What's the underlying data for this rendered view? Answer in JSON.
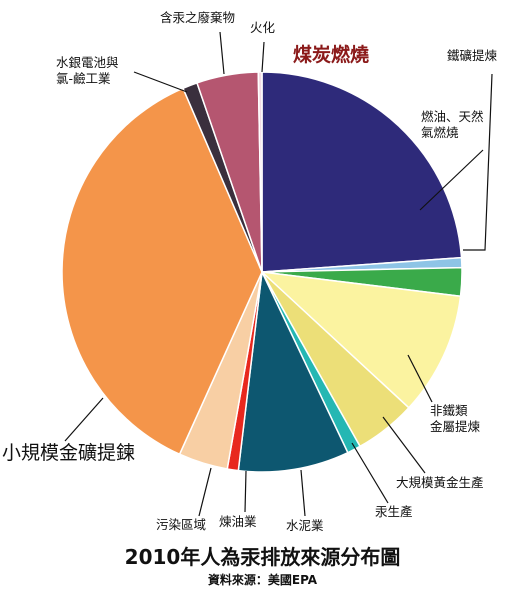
{
  "chart_data": {
    "type": "pie",
    "title": "2010年人為汞排放來源分布圖",
    "subtitle": "資料來源：美國EPA",
    "start_angle_deg": 0,
    "direction": "clockwise",
    "slices": [
      {
        "label": "煤炭燃燒",
        "value": 24.0,
        "color": "#2e2a7a"
      },
      {
        "label": "燃油、天然氣燃燒",
        "value": 0.8,
        "color": "#8ec4e6"
      },
      {
        "label": "鐵礦提煉",
        "value": 2.3,
        "color": "#3aaa4a"
      },
      {
        "label": "非鐵類金屬提煉",
        "value": 10.0,
        "color": "#fbf3a0"
      },
      {
        "label": "大規模黃金生產",
        "value": 5.0,
        "color": "#ecdf78"
      },
      {
        "label": "汞生產",
        "value": 1.1,
        "color": "#25b7b3"
      },
      {
        "label": "水泥業",
        "value": 9.0,
        "color": "#0d5770"
      },
      {
        "label": "煉油業",
        "value": 0.9,
        "color": "#e8281e"
      },
      {
        "label": "污染區域",
        "value": 4.0,
        "color": "#f8cfa4"
      },
      {
        "label": "小規模金礦提鍊",
        "value": 37.0,
        "color": "#f4954a"
      },
      {
        "label": "水銀電池與氯-鹼工業",
        "value": 1.2,
        "color": "#3a2f3d"
      },
      {
        "label": "含汞之廢棄物",
        "value": 5.0,
        "color": "#b55670"
      },
      {
        "label": "火化",
        "value": 0.3,
        "color": "#f3dbe4"
      }
    ]
  }
}
